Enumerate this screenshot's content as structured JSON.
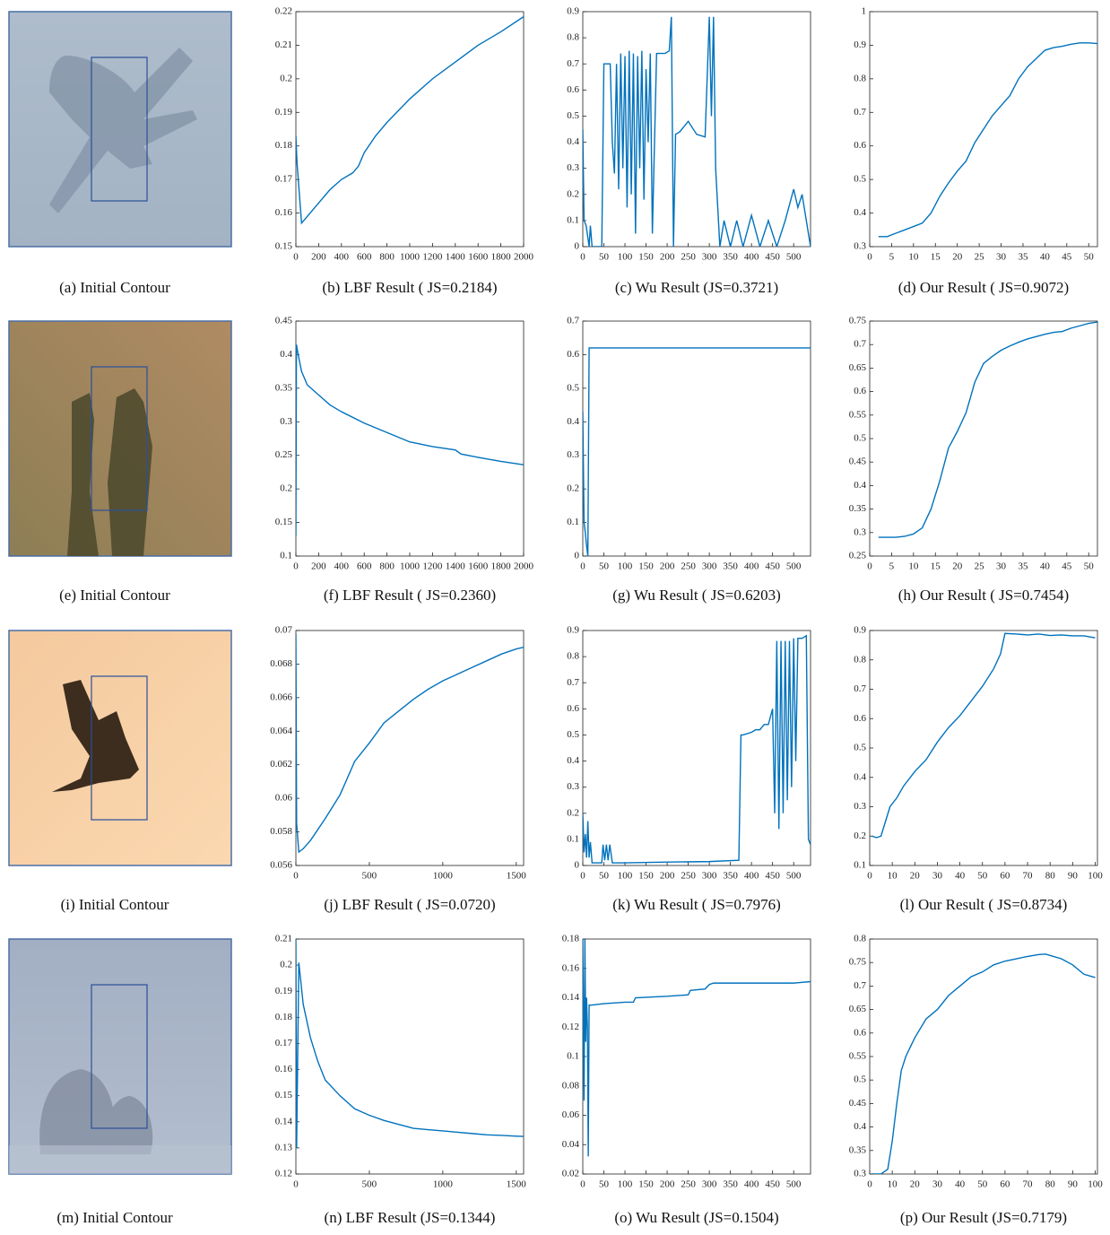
{
  "images": [
    {
      "caption": "(a) Initial Contour"
    },
    {
      "caption": "(e) Initial Contour"
    },
    {
      "caption": "(i) Initial Contour"
    },
    {
      "caption": "(m) Initial Contour"
    }
  ],
  "chart_data": [
    {
      "type": "line",
      "title": "(b) LBF Result ( JS=0.2184)",
      "color": "#0072bd",
      "xlim": [
        0,
        2000
      ],
      "xticks": [
        0,
        200,
        400,
        600,
        800,
        1000,
        1200,
        1400,
        1600,
        1800,
        2000
      ],
      "ylim": [
        0.15,
        0.22
      ],
      "yticks": [
        0.15,
        0.16,
        0.17,
        0.18,
        0.19,
        0.2,
        0.21,
        0.22
      ],
      "x": [
        0,
        10,
        50,
        100,
        200,
        300,
        400,
        500,
        550,
        600,
        700,
        800,
        1000,
        1200,
        1400,
        1600,
        1800,
        2000
      ],
      "values": [
        0.183,
        0.175,
        0.157,
        0.159,
        0.163,
        0.167,
        0.17,
        0.172,
        0.174,
        0.178,
        0.183,
        0.187,
        0.194,
        0.2,
        0.205,
        0.21,
        0.214,
        0.2185
      ]
    },
    {
      "type": "line",
      "title": "(c) Wu Result (JS=0.3721)",
      "color": "#0072bd",
      "xlim": [
        0,
        540
      ],
      "xticks": [
        0,
        50,
        100,
        150,
        200,
        250,
        300,
        350,
        400,
        450,
        500
      ],
      "ylim": [
        0,
        0.9
      ],
      "yticks": [
        0,
        0.1,
        0.2,
        0.3,
        0.4,
        0.5,
        0.6,
        0.7,
        0.8,
        0.9
      ],
      "x": [
        0,
        3,
        8,
        15,
        18,
        22,
        45,
        50,
        65,
        70,
        75,
        80,
        85,
        90,
        95,
        100,
        105,
        110,
        115,
        120,
        125,
        130,
        135,
        140,
        145,
        150,
        155,
        160,
        165,
        175,
        185,
        195,
        205,
        210,
        215,
        220,
        230,
        250,
        270,
        290,
        300,
        305,
        310,
        315,
        325,
        335,
        350,
        365,
        380,
        400,
        420,
        440,
        460,
        480,
        500,
        510,
        520,
        530,
        540
      ],
      "values": [
        0.45,
        0.1,
        0.08,
        0,
        0.08,
        0,
        0,
        0.7,
        0.7,
        0.4,
        0.28,
        0.7,
        0.22,
        0.74,
        0.3,
        0.73,
        0.15,
        0.75,
        0.2,
        0.74,
        0.05,
        0.73,
        0.3,
        0.75,
        0.18,
        0.68,
        0.4,
        0.74,
        0.05,
        0.74,
        0.74,
        0.74,
        0.75,
        0.88,
        0,
        0.43,
        0.44,
        0.48,
        0.43,
        0.42,
        0.88,
        0.5,
        0.88,
        0.3,
        0,
        0.1,
        0,
        0.1,
        0,
        0.12,
        0,
        0.1,
        0,
        0.1,
        0.22,
        0.15,
        0.2,
        0.1,
        0
      ]
    },
    {
      "type": "line",
      "title": "(d) Our Result ( JS=0.9072)",
      "color": "#0072bd",
      "xlim": [
        0,
        52
      ],
      "xticks": [
        0,
        5,
        10,
        15,
        20,
        25,
        30,
        35,
        40,
        45,
        50
      ],
      "ylim": [
        0.3,
        1
      ],
      "yticks": [
        0.3,
        0.4,
        0.5,
        0.6,
        0.7,
        0.8,
        0.9,
        1
      ],
      "x": [
        2,
        4,
        6,
        8,
        10,
        12,
        14,
        16,
        18,
        20,
        22,
        24,
        26,
        28,
        30,
        32,
        34,
        36,
        38,
        40,
        42,
        44,
        46,
        48,
        50,
        52
      ],
      "values": [
        0.33,
        0.33,
        0.34,
        0.35,
        0.36,
        0.37,
        0.4,
        0.45,
        0.49,
        0.525,
        0.555,
        0.61,
        0.65,
        0.69,
        0.72,
        0.75,
        0.8,
        0.835,
        0.86,
        0.885,
        0.893,
        0.897,
        0.903,
        0.907,
        0.907,
        0.905
      ]
    },
    {
      "type": "line",
      "title": "(f) LBF Result ( JS=0.2360)",
      "color": "#0072bd",
      "xlim": [
        0,
        2000
      ],
      "xticks": [
        0,
        200,
        400,
        600,
        800,
        1000,
        1200,
        1400,
        1600,
        1800,
        2000
      ],
      "ylim": [
        0.1,
        0.45
      ],
      "yticks": [
        0.1,
        0.15,
        0.2,
        0.25,
        0.3,
        0.35,
        0.4,
        0.45
      ],
      "x": [
        0,
        5,
        20,
        50,
        100,
        200,
        300,
        400,
        600,
        800,
        1000,
        1200,
        1400,
        1450,
        1600,
        1800,
        2000
      ],
      "values": [
        0.13,
        0.415,
        0.4,
        0.375,
        0.355,
        0.34,
        0.325,
        0.315,
        0.298,
        0.284,
        0.27,
        0.263,
        0.258,
        0.252,
        0.247,
        0.241,
        0.236
      ]
    },
    {
      "type": "line",
      "title": "(g) Wu Result ( JS=0.6203)",
      "color": "#0072bd",
      "xlim": [
        0,
        540
      ],
      "xticks": [
        0,
        50,
        100,
        150,
        200,
        250,
        300,
        350,
        400,
        450,
        500
      ],
      "ylim": [
        0,
        0.7
      ],
      "yticks": [
        0,
        0.1,
        0.2,
        0.3,
        0.4,
        0.5,
        0.6,
        0.7
      ],
      "x": [
        0,
        3,
        6,
        9,
        12,
        15,
        540
      ],
      "values": [
        0.43,
        0.1,
        0.07,
        0.03,
        0,
        0.62,
        0.62
      ]
    },
    {
      "type": "line",
      "title": "(h) Our Result ( JS=0.7454)",
      "color": "#0072bd",
      "xlim": [
        0,
        52
      ],
      "xticks": [
        0,
        5,
        10,
        15,
        20,
        25,
        30,
        35,
        40,
        45,
        50
      ],
      "ylim": [
        0.25,
        0.75
      ],
      "yticks": [
        0.25,
        0.3,
        0.35,
        0.4,
        0.45,
        0.5,
        0.55,
        0.6,
        0.65,
        0.7,
        0.75
      ],
      "x": [
        2,
        4,
        6,
        8,
        10,
        12,
        14,
        16,
        18,
        20,
        22,
        24,
        26,
        28,
        30,
        32,
        34,
        36,
        38,
        40,
        42,
        44,
        46,
        48,
        50,
        52
      ],
      "values": [
        0.29,
        0.29,
        0.29,
        0.292,
        0.297,
        0.31,
        0.35,
        0.41,
        0.48,
        0.515,
        0.555,
        0.62,
        0.66,
        0.675,
        0.688,
        0.697,
        0.705,
        0.712,
        0.717,
        0.722,
        0.726,
        0.728,
        0.735,
        0.74,
        0.745,
        0.748
      ]
    },
    {
      "type": "line",
      "title": "(j) LBF Result ( JS=0.0720)",
      "color": "#0072bd",
      "xlim": [
        0,
        1550
      ],
      "xticks": [
        0,
        500,
        1000,
        1500
      ],
      "ylim": [
        0.056,
        0.07
      ],
      "yticks": [
        0.056,
        0.058,
        0.06,
        0.062,
        0.064,
        0.066,
        0.068,
        0.07
      ],
      "x": [
        0,
        5,
        20,
        50,
        100,
        200,
        300,
        400,
        500,
        600,
        700,
        800,
        900,
        1000,
        1100,
        1200,
        1300,
        1400,
        1500,
        1550
      ],
      "values": [
        0.0698,
        0.0585,
        0.0568,
        0.057,
        0.0575,
        0.0588,
        0.0602,
        0.0622,
        0.0633,
        0.0645,
        0.0652,
        0.0659,
        0.0665,
        0.067,
        0.0674,
        0.0678,
        0.0682,
        0.0686,
        0.0689,
        0.069
      ]
    },
    {
      "type": "line",
      "title": "(k) Wu Result ( JS=0.7976)",
      "color": "#0072bd",
      "xlim": [
        0,
        540
      ],
      "xticks": [
        0,
        50,
        100,
        150,
        200,
        250,
        300,
        350,
        400,
        450,
        500
      ],
      "ylim": [
        0,
        0.9
      ],
      "yticks": [
        0,
        0.1,
        0.2,
        0.3,
        0.4,
        0.5,
        0.6,
        0.7,
        0.8,
        0.9
      ],
      "x": [
        0,
        3,
        6,
        9,
        12,
        15,
        18,
        22,
        30,
        45,
        48,
        52,
        56,
        60,
        64,
        70,
        100,
        200,
        300,
        370,
        375,
        380,
        400,
        410,
        420,
        425,
        430,
        440,
        450,
        455,
        460,
        465,
        470,
        475,
        480,
        485,
        490,
        495,
        500,
        505,
        510,
        520,
        530,
        535,
        540
      ],
      "values": [
        0.2,
        0.05,
        0.12,
        0.03,
        0.17,
        0.03,
        0.09,
        0.01,
        0.01,
        0.01,
        0.08,
        0.02,
        0.08,
        0.02,
        0.08,
        0.01,
        0.01,
        0.013,
        0.015,
        0.02,
        0.5,
        0.5,
        0.51,
        0.52,
        0.52,
        0.53,
        0.54,
        0.54,
        0.6,
        0.2,
        0.86,
        0.14,
        0.86,
        0.2,
        0.86,
        0.25,
        0.86,
        0.3,
        0.87,
        0.4,
        0.87,
        0.87,
        0.88,
        0.1,
        0.08
      ]
    },
    {
      "type": "line",
      "title": "(l) Our Result ( JS=0.8734)",
      "color": "#0072bd",
      "xlim": [
        0,
        101
      ],
      "xticks": [
        0,
        10,
        20,
        30,
        40,
        50,
        60,
        70,
        80,
        90,
        100
      ],
      "ylim": [
        0.1,
        0.9
      ],
      "yticks": [
        0.1,
        0.2,
        0.3,
        0.4,
        0.5,
        0.6,
        0.7,
        0.8,
        0.9
      ],
      "x": [
        1,
        3,
        5,
        7,
        9,
        12,
        15,
        20,
        25,
        30,
        35,
        40,
        45,
        50,
        55,
        58,
        60,
        65,
        70,
        75,
        80,
        85,
        90,
        95,
        100
      ],
      "values": [
        0.2,
        0.195,
        0.2,
        0.25,
        0.3,
        0.33,
        0.37,
        0.42,
        0.46,
        0.52,
        0.57,
        0.61,
        0.66,
        0.71,
        0.77,
        0.82,
        0.89,
        0.888,
        0.885,
        0.888,
        0.883,
        0.885,
        0.882,
        0.882,
        0.875
      ]
    },
    {
      "type": "line",
      "title": "(n) LBF Result (JS=0.1344)",
      "color": "#0072bd",
      "xlim": [
        0,
        1550
      ],
      "xticks": [
        0,
        500,
        1000,
        1500
      ],
      "ylim": [
        0.12,
        0.21
      ],
      "yticks": [
        0.12,
        0.13,
        0.14,
        0.15,
        0.16,
        0.17,
        0.18,
        0.19,
        0.2,
        0.21
      ],
      "x": [
        0,
        5,
        20,
        50,
        100,
        150,
        200,
        300,
        400,
        500,
        600,
        700,
        800,
        900,
        1000,
        1100,
        1200,
        1300,
        1400,
        1500,
        1550
      ],
      "values": [
        0.21,
        0.13,
        0.201,
        0.185,
        0.172,
        0.163,
        0.156,
        0.15,
        0.145,
        0.1425,
        0.1405,
        0.139,
        0.1375,
        0.137,
        0.1365,
        0.136,
        0.1355,
        0.135,
        0.1348,
        0.1345,
        0.1344
      ]
    },
    {
      "type": "line",
      "title": "(o) Wu Result (JS=0.1504)",
      "color": "#0072bd",
      "xlim": [
        0,
        540
      ],
      "xticks": [
        0,
        50,
        100,
        150,
        200,
        250,
        300,
        350,
        400,
        450,
        500
      ],
      "ylim": [
        0.02,
        0.18
      ],
      "yticks": [
        0.02,
        0.04,
        0.06,
        0.08,
        0.1,
        0.12,
        0.14,
        0.16,
        0.18
      ],
      "x": [
        0,
        3,
        5,
        7,
        9,
        11,
        13,
        15,
        20,
        50,
        100,
        120,
        125,
        200,
        250,
        255,
        290,
        300,
        310,
        400,
        500,
        540
      ],
      "values": [
        0.18,
        0.07,
        0.18,
        0.11,
        0.14,
        0.12,
        0.032,
        0.135,
        0.135,
        0.136,
        0.137,
        0.137,
        0.14,
        0.141,
        0.142,
        0.145,
        0.146,
        0.149,
        0.15,
        0.15,
        0.15,
        0.151
      ]
    },
    {
      "type": "line",
      "title": "(p) Our Result (JS=0.7179)",
      "color": "#0072bd",
      "xlim": [
        0,
        101
      ],
      "xticks": [
        0,
        10,
        20,
        30,
        40,
        50,
        60,
        70,
        80,
        90,
        100
      ],
      "ylim": [
        0.3,
        0.8
      ],
      "yticks": [
        0.3,
        0.35,
        0.4,
        0.45,
        0.5,
        0.55,
        0.6,
        0.65,
        0.7,
        0.75,
        0.8
      ],
      "x": [
        1,
        5,
        8,
        10,
        12,
        14,
        16,
        20,
        25,
        30,
        35,
        40,
        45,
        50,
        55,
        60,
        65,
        70,
        75,
        78,
        80,
        85,
        90,
        95,
        100
      ],
      "values": [
        0.3,
        0.3,
        0.31,
        0.37,
        0.45,
        0.52,
        0.55,
        0.59,
        0.63,
        0.65,
        0.68,
        0.7,
        0.72,
        0.73,
        0.745,
        0.753,
        0.758,
        0.763,
        0.767,
        0.768,
        0.765,
        0.758,
        0.745,
        0.725,
        0.718
      ]
    }
  ]
}
